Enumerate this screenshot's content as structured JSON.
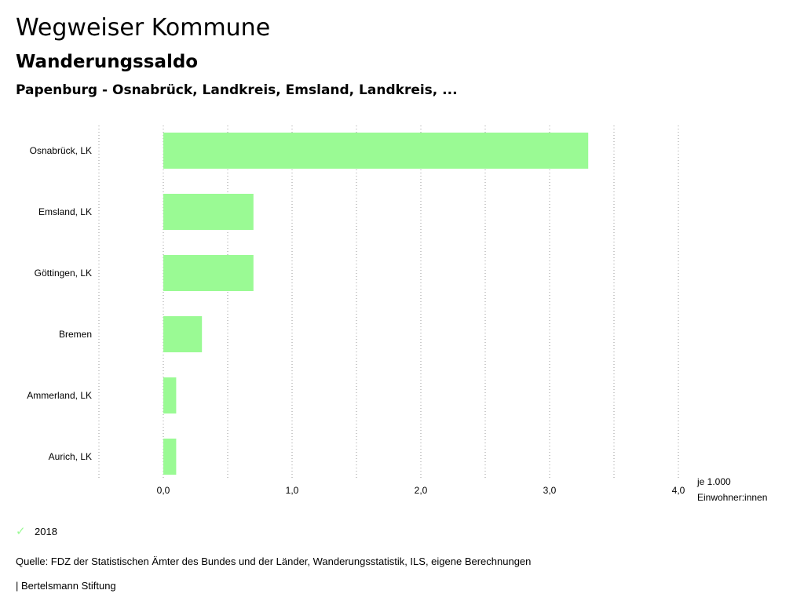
{
  "header": {
    "title": "Wegweiser Kommune",
    "subtitle": "Wanderungssaldo",
    "subsubtitle": "Papenburg - Osnabrück, Landkreis, Emsland, Landkreis, ..."
  },
  "chart_data": {
    "type": "bar",
    "orientation": "horizontal",
    "categories": [
      "Osnabrück, LK",
      "Emsland, LK",
      "Göttingen, LK",
      "Bremen",
      "Ammerland, LK",
      "Aurich, LK"
    ],
    "series": [
      {
        "name": "2018",
        "values": [
          3.3,
          0.7,
          0.7,
          0.3,
          0.1,
          0.1
        ],
        "color": "#9afa94"
      }
    ],
    "xlim": [
      -0.5,
      4.0
    ],
    "ticks": [
      0,
      1,
      2,
      3,
      4
    ],
    "tick_labels": [
      "0,0",
      "1,0",
      "2,0",
      "3,0",
      "4,0"
    ],
    "unit_label_lines": [
      "je 1.000",
      "Einwohner:innen"
    ],
    "grid": true
  },
  "legend": {
    "label": "2018",
    "color": "#9afa94"
  },
  "footer": {
    "source": "Quelle: FDZ der Statistischen Ämter des Bundes und der Länder, Wanderungsstatistik, ILS, eigene Berechnungen",
    "credit": "| Bertelsmann Stiftung"
  }
}
